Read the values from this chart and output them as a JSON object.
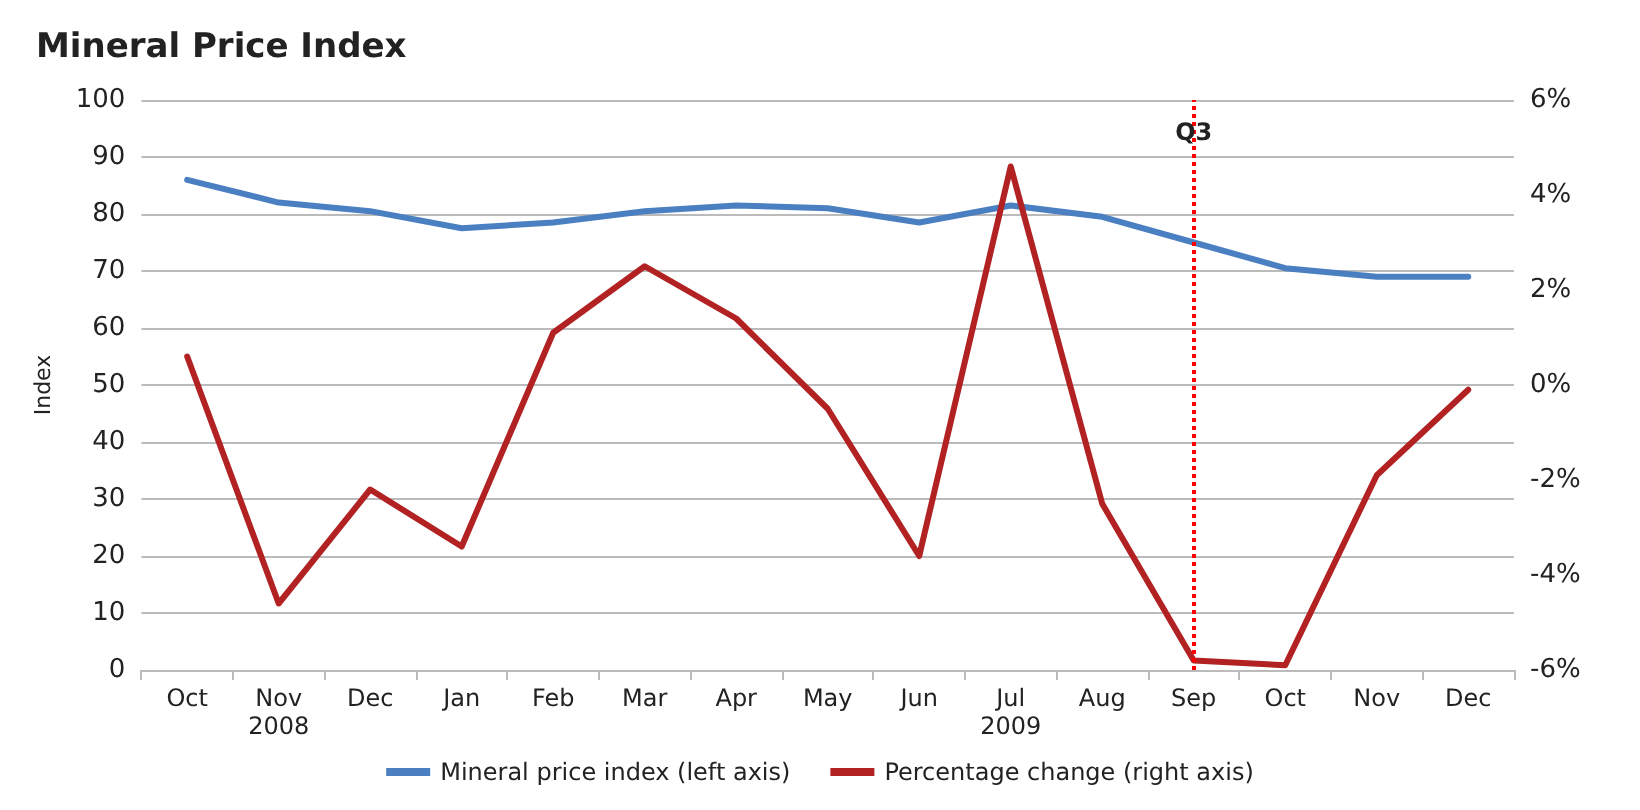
{
  "chart_data": {
    "type": "line",
    "title": "Mineral Price Index",
    "ylabel": "Index",
    "categories": [
      "Oct",
      "Nov",
      "Dec",
      "Jan",
      "Feb",
      "Mar",
      "Apr",
      "May",
      "Jun",
      "Jul",
      "Aug",
      "Sep",
      "Oct",
      "Nov",
      "Dec"
    ],
    "series": [
      {
        "name": "Mineral price index (left axis)",
        "color": "#4a7fc1",
        "values": [
          86,
          82,
          80.5,
          77.5,
          78.5,
          80.5,
          81.5,
          81,
          78.5,
          81.5,
          79.5,
          75,
          70.5,
          69,
          69
        ]
      },
      {
        "name": "Percentage change (right axis)",
        "color": "#b22222",
        "axis": "y2",
        "values": [
          0.6,
          -4.6,
          -2.2,
          -3.4,
          1.1,
          2.5,
          1.4,
          -0.5,
          -3.6,
          4.6,
          -2.5,
          -5.8,
          -5.9,
          -1.9,
          -0.1
        ]
      }
    ],
    "ylim": [
      0,
      100
    ],
    "yticks": [
      0,
      10,
      20,
      30,
      40,
      50,
      60,
      70,
      80,
      90,
      100
    ],
    "y2lim": [
      -6,
      6
    ],
    "y2ticks": [
      {
        "value": -6,
        "label": "-6%"
      },
      {
        "value": -4,
        "label": "-4%"
      },
      {
        "value": -2,
        "label": "-2%"
      },
      {
        "value": 0,
        "label": "0%"
      },
      {
        "value": 2,
        "label": "2%"
      },
      {
        "value": 4,
        "label": "4%"
      },
      {
        "value": 6,
        "label": "6%"
      }
    ],
    "ref_lines": [
      {
        "axis": "x",
        "value": "Sep",
        "label": "Q3",
        "color": "#ff0000",
        "line_style": "dotted"
      }
    ],
    "annotations": [
      "2008",
      "2009"
    ],
    "grid": "y",
    "legend": "bottom",
    "marker": "none",
    "line_style": "solid"
  }
}
